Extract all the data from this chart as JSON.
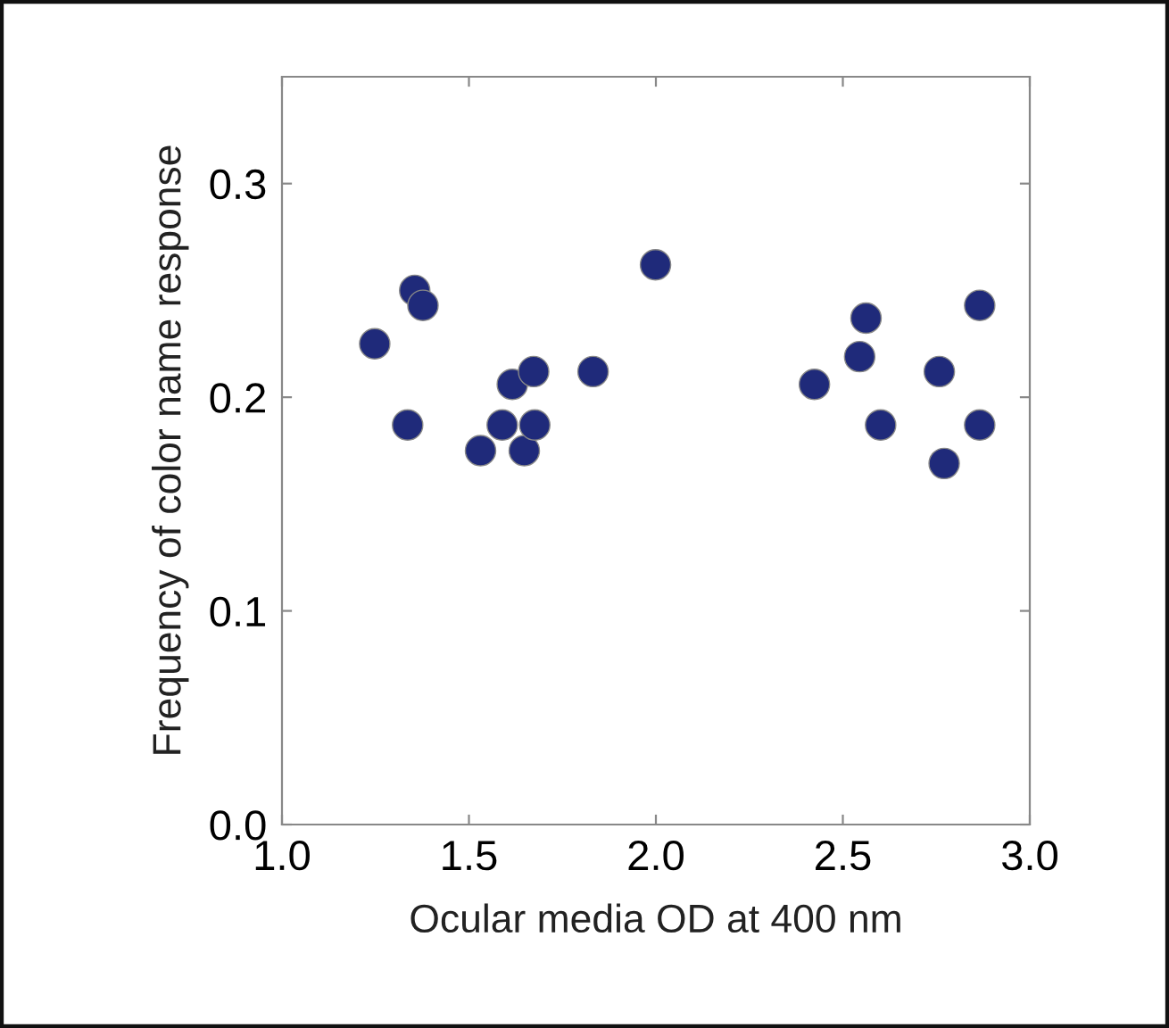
{
  "chart_data": {
    "type": "scatter",
    "xlabel": "Ocular media OD at 400 nm",
    "ylabel": "Frequency of color name response",
    "x": [
      1.248,
      1.355,
      1.377,
      1.336,
      1.531,
      1.589,
      1.616,
      1.648,
      1.673,
      1.676,
      1.832,
      1.999,
      2.424,
      2.545,
      2.562,
      2.601,
      2.758,
      2.771,
      2.866,
      2.866
    ],
    "values": [
      0.225,
      0.25,
      0.243,
      0.187,
      0.175,
      0.187,
      0.206,
      0.175,
      0.212,
      0.187,
      0.212,
      0.262,
      0.206,
      0.219,
      0.237,
      0.187,
      0.212,
      0.169,
      0.243,
      0.187
    ],
    "color": "#1f2a7a",
    "marker": "circle",
    "xlim": [
      1.0,
      3.0
    ],
    "xticks": [
      {
        "value": 1.0,
        "label": "1.0"
      },
      1.5,
      {
        "value": 2.0,
        "label": "2.0"
      },
      2.5,
      {
        "value": 3.0,
        "label": "3.0"
      }
    ],
    "ylim": [
      0.0,
      0.35
    ],
    "yticks": [
      {
        "value": 0.0,
        "label": "0.0"
      },
      0.1,
      0.2,
      0.3
    ],
    "grid": false
  }
}
